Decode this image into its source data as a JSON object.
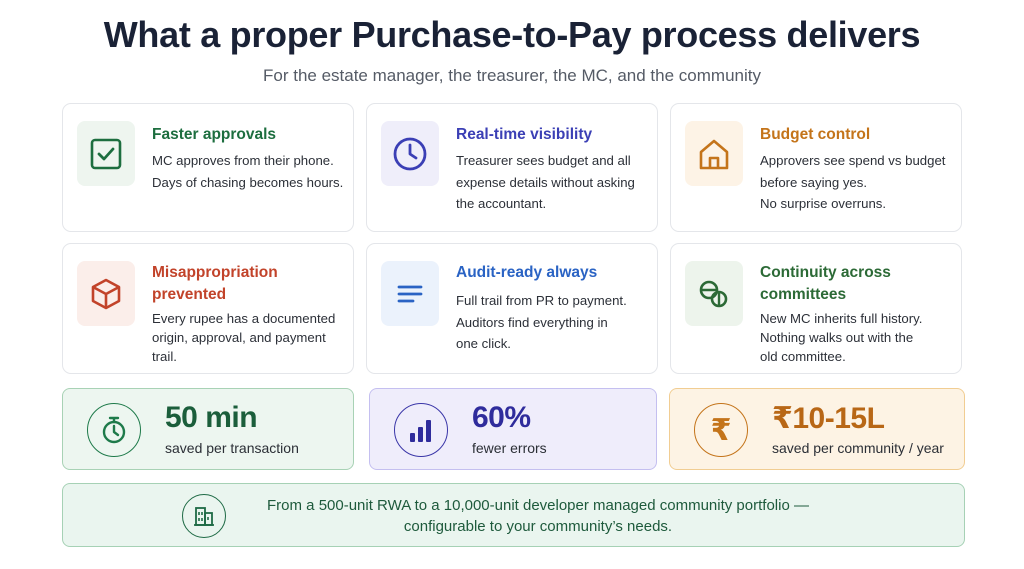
{
  "header": {
    "title": "What a proper Purchase-to-Pay process delivers",
    "subtitle": "For the estate manager, the treasurer, the MC, and the community"
  },
  "cards": [
    {
      "title": "Faster approvals",
      "lines": [
        "MC approves from their phone.",
        "Days of chasing becomes hours."
      ],
      "icon": "checkbox-icon",
      "color": "#1d6e3f"
    },
    {
      "title": "Real-time visibility",
      "lines": [
        "Treasurer sees budget and all",
        "expense details without asking",
        "the accountant."
      ],
      "icon": "clock-icon",
      "color": "#3b3fb5"
    },
    {
      "title": "Budget control",
      "lines": [
        "Approvers see spend vs budget",
        "before saying yes.",
        "No surprise overruns."
      ],
      "icon": "house-icon",
      "color": "#c4741a"
    },
    {
      "title_lines": [
        "Misappropriation",
        "prevented"
      ],
      "lines": [
        "Every rupee has a documented",
        "origin, approval, and payment trail."
      ],
      "icon": "cube-icon",
      "color": "#c2432a"
    },
    {
      "title": "Audit-ready always",
      "lines": [
        "Full trail from PR to payment.",
        "Auditors find everything in",
        "one click."
      ],
      "icon": "list-icon",
      "color": "#2a63c4"
    },
    {
      "title_lines": [
        "Continuity across",
        "committees"
      ],
      "lines": [
        "New MC inherits full history.",
        "Nothing walks out with the",
        "old committee."
      ],
      "icon": "handoff-icon",
      "color": "#2c6a36"
    }
  ],
  "stats": [
    {
      "value": "50 min",
      "label": "saved per transaction",
      "icon": "stopwatch-icon",
      "color": "#1b5e3b"
    },
    {
      "value": "60%",
      "label": "fewer errors",
      "icon": "bar-chart-icon",
      "color": "#2f2c9c"
    },
    {
      "value": "₹10-15L",
      "label": "saved per community / year",
      "icon": "rupee-icon",
      "color": "#b86716"
    }
  ],
  "banner": {
    "line1": "From a 500-unit RWA to a 10,000-unit developer managed community portfolio —",
    "line2": "configurable to your community’s needs.",
    "icon": "building-icon"
  }
}
